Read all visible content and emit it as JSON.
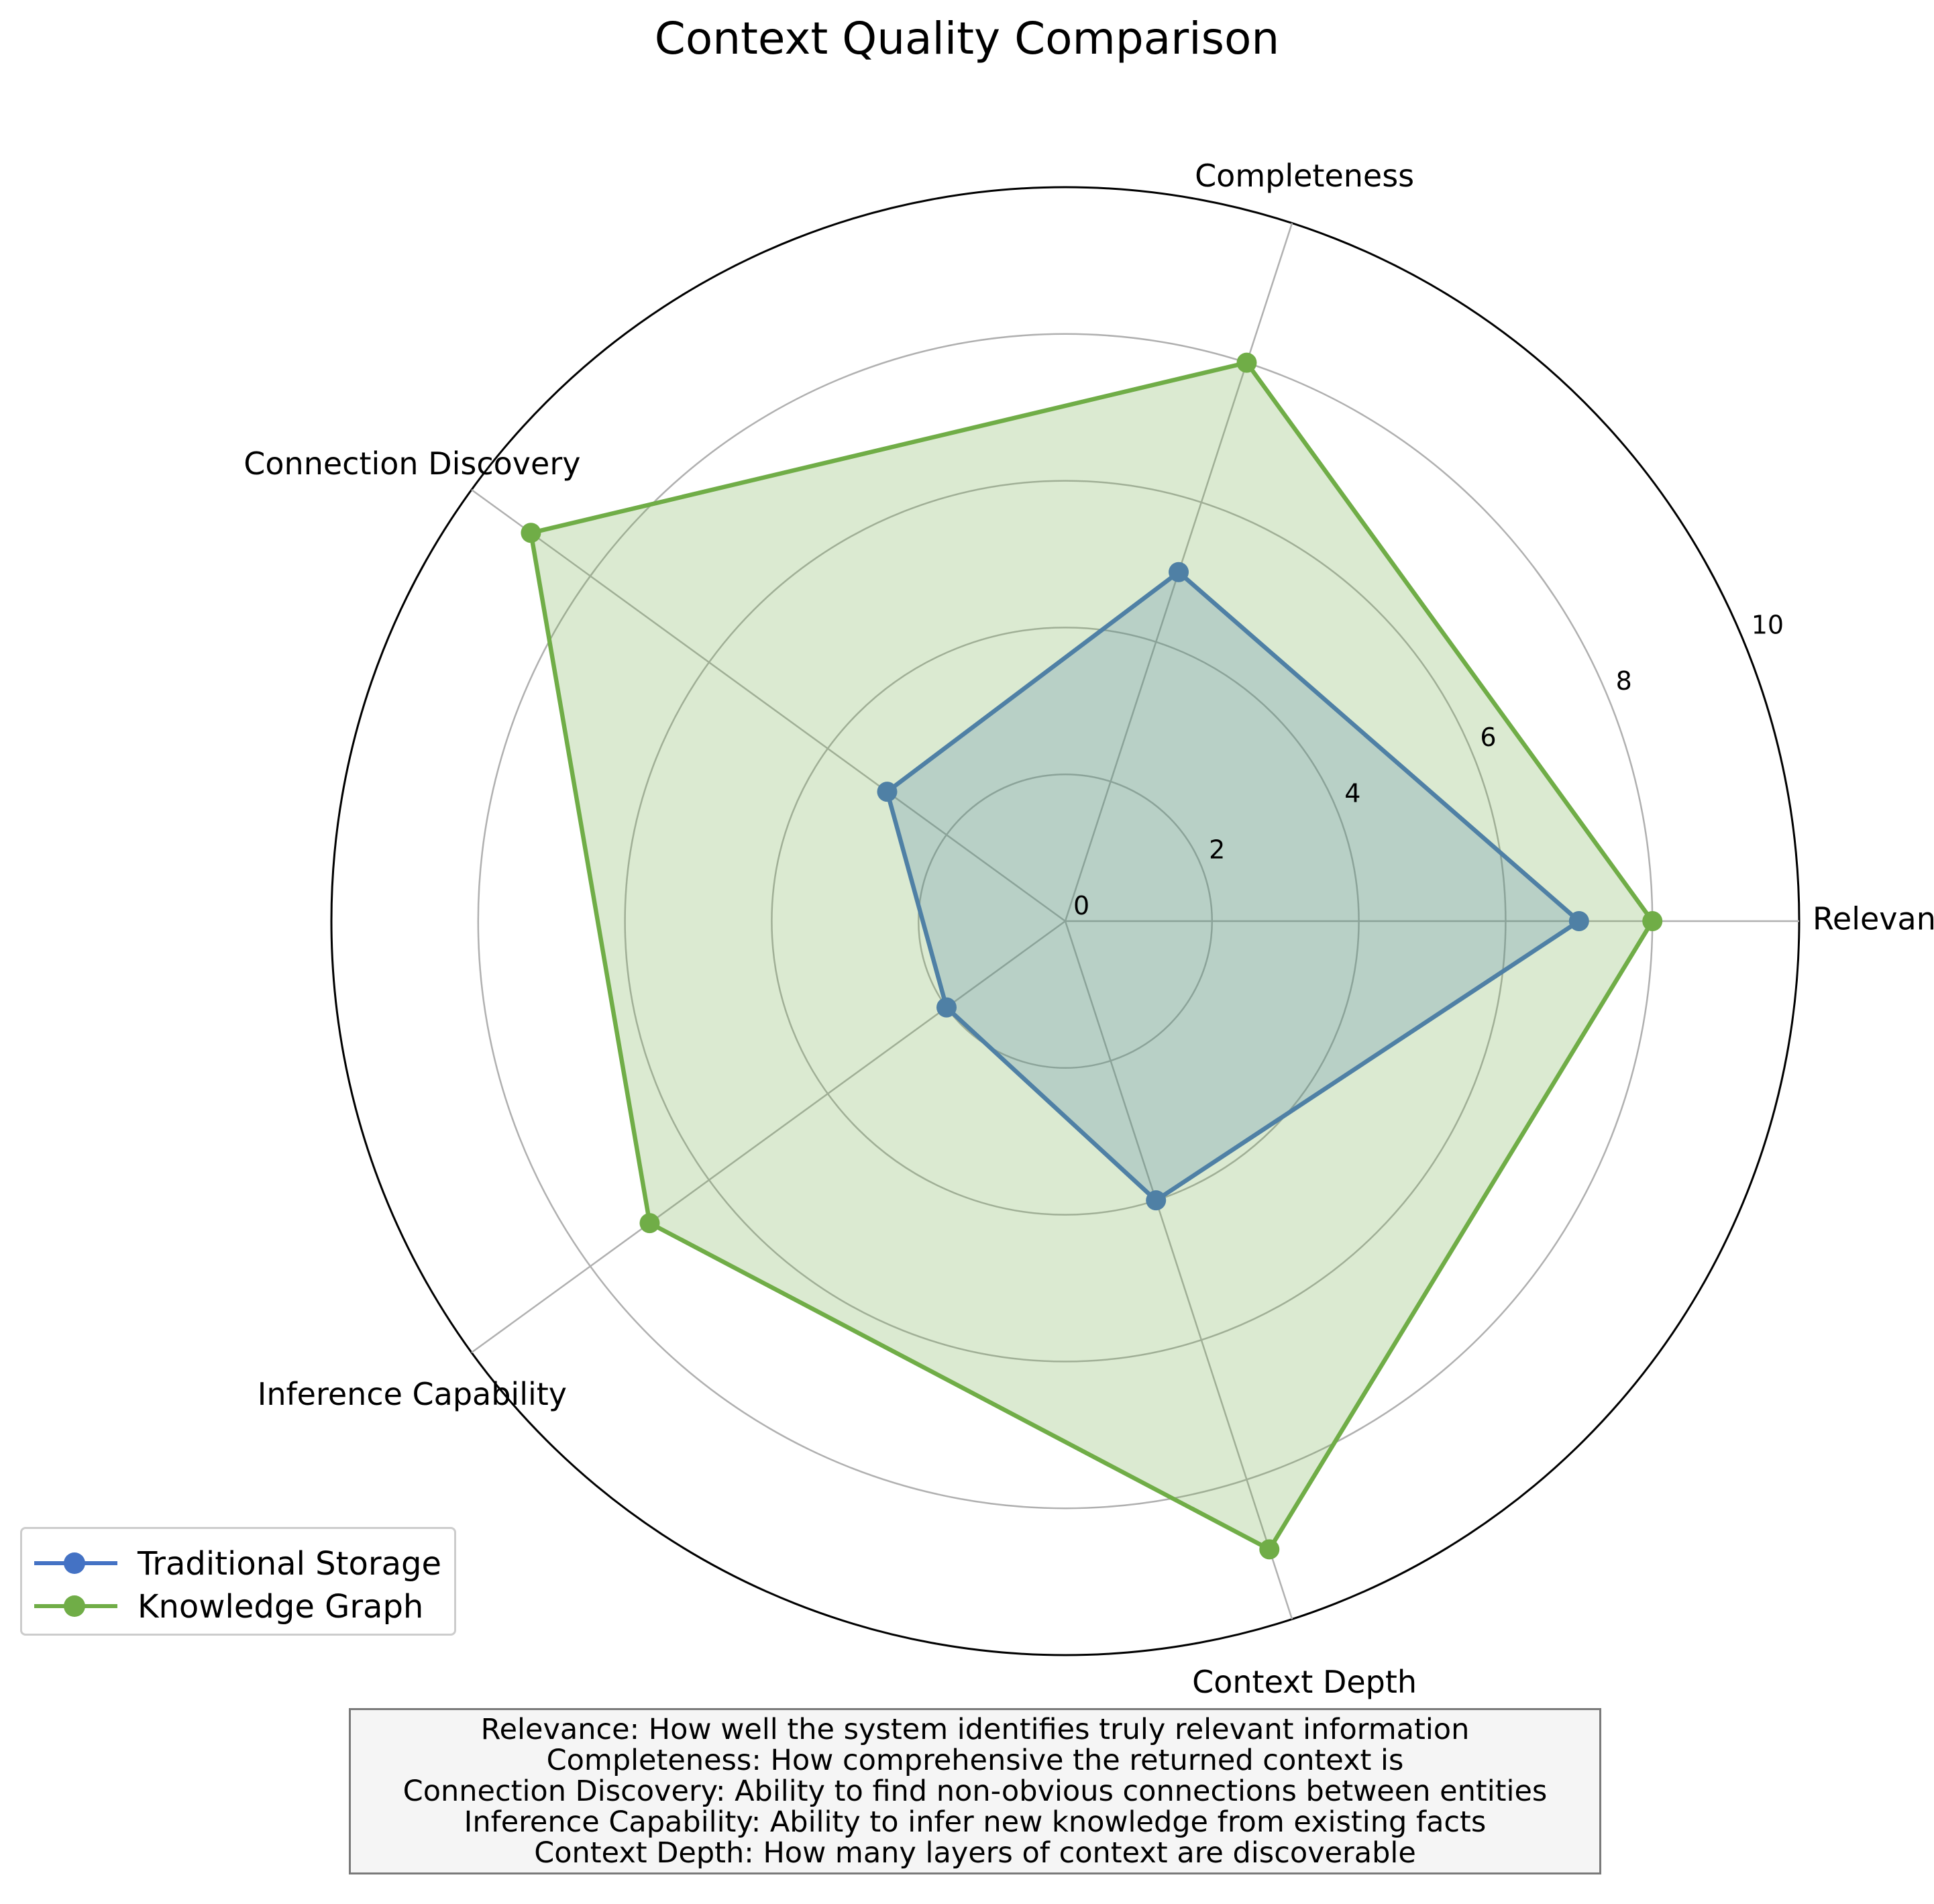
{
  "title": "Context Quality Comparison",
  "chart_data": {
    "type": "radar",
    "title": "Context Quality Comparison",
    "categories": [
      "Relevance",
      "Completeness",
      "Connection Discovery",
      "Inference Capability",
      "Context Depth"
    ],
    "radial_ticks": [
      "0",
      "2",
      "4",
      "6",
      "8",
      "10"
    ],
    "rlim": [
      0,
      10
    ],
    "grid": true,
    "legend_position": "lower-left",
    "series": [
      {
        "name": "Traditional Storage",
        "values": [
          7,
          5,
          3,
          2,
          4
        ],
        "color": "#4472c4"
      },
      {
        "name": "Knowledge Graph",
        "values": [
          8,
          8,
          9,
          7,
          9
        ],
        "color": "#70ad47"
      }
    ]
  },
  "notes": [
    "Relevance: How well the system identifies truly relevant information",
    "Completeness: How comprehensive the returned context is",
    "Connection Discovery: Ability to find non-obvious connections between entities",
    "Inference Capability: Ability to infer new knowledge from existing facts",
    "Context Depth: How many layers of context are discoverable"
  ]
}
